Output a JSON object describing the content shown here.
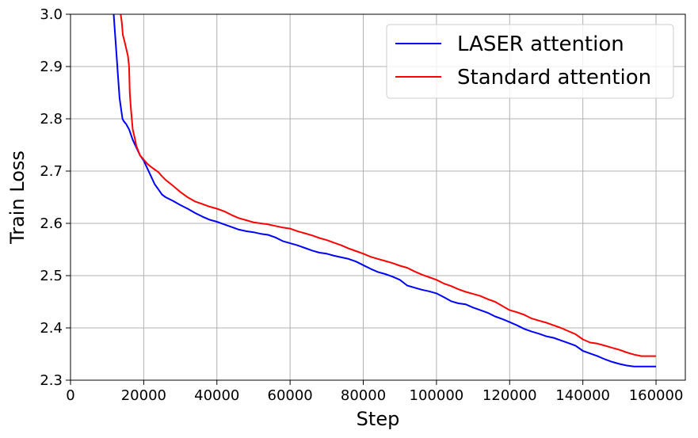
{
  "chart_data": {
    "type": "line",
    "title": "",
    "xlabel": "Step",
    "ylabel": "Train Loss",
    "xlim": [
      0,
      168000
    ],
    "ylim": [
      2.3,
      3.0
    ],
    "grid": true,
    "legend_position": "top-right",
    "x_ticks": [
      0,
      20000,
      40000,
      60000,
      80000,
      100000,
      120000,
      140000,
      160000
    ],
    "x_tick_labels": [
      "0",
      "20000",
      "40000",
      "60000",
      "80000",
      "100000",
      "120000",
      "140000",
      "160000"
    ],
    "y_ticks": [
      2.3,
      2.4,
      2.5,
      2.6,
      2.7,
      2.8,
      2.9,
      3.0
    ],
    "y_tick_labels": [
      "2.3",
      "2.4",
      "2.5",
      "2.6",
      "2.7",
      "2.8",
      "2.9",
      "3.0"
    ],
    "series": [
      {
        "name": "LASER attention",
        "color": "#0000ff",
        "x": [
          11800,
          12000,
          12300,
          12600,
          13000,
          13400,
          13800,
          14200,
          14600,
          15200,
          16000,
          17000,
          18000,
          19000,
          20000,
          21000,
          22000,
          23000,
          24000,
          25000,
          26000,
          28000,
          30000,
          32000,
          34000,
          36000,
          38000,
          40000,
          42000,
          44000,
          46000,
          48000,
          50000,
          52000,
          54000,
          56000,
          58000,
          60000,
          62000,
          64000,
          66000,
          68000,
          70000,
          72000,
          74000,
          76000,
          78000,
          80000,
          82000,
          84000,
          86000,
          88000,
          90000,
          92000,
          94000,
          96000,
          98000,
          100000,
          102000,
          104000,
          106000,
          108000,
          110000,
          112000,
          114000,
          116000,
          118000,
          120000,
          122000,
          124000,
          126000,
          128000,
          130000,
          132000,
          134000,
          136000,
          138000,
          140000,
          142000,
          144000,
          146000,
          148000,
          150000,
          152000,
          154000,
          156000,
          158000,
          160000
        ],
        "y": [
          3.0,
          2.98,
          2.95,
          2.92,
          2.88,
          2.84,
          2.82,
          2.8,
          2.795,
          2.79,
          2.78,
          2.76,
          2.745,
          2.73,
          2.72,
          2.705,
          2.69,
          2.675,
          2.665,
          2.655,
          2.65,
          2.643,
          2.635,
          2.628,
          2.62,
          2.613,
          2.607,
          2.603,
          2.598,
          2.593,
          2.588,
          2.585,
          2.583,
          2.58,
          2.578,
          2.573,
          2.566,
          2.562,
          2.558,
          2.553,
          2.548,
          2.544,
          2.542,
          2.538,
          2.535,
          2.532,
          2.527,
          2.52,
          2.513,
          2.507,
          2.503,
          2.498,
          2.492,
          2.481,
          2.477,
          2.473,
          2.47,
          2.466,
          2.459,
          2.451,
          2.447,
          2.445,
          2.439,
          2.434,
          2.429,
          2.422,
          2.417,
          2.411,
          2.405,
          2.398,
          2.393,
          2.389,
          2.384,
          2.381,
          2.376,
          2.371,
          2.366,
          2.356,
          2.351,
          2.346,
          2.34,
          2.335,
          2.331,
          2.328,
          2.326,
          2.326,
          2.326,
          2.326
        ]
      },
      {
        "name": "Standard attention",
        "color": "#ff0000",
        "x": [
          13700,
          14000,
          14300,
          14700,
          15200,
          15700,
          16000,
          16200,
          16500,
          17000,
          17500,
          18000,
          19000,
          20000,
          21000,
          22000,
          23000,
          24000,
          25000,
          26000,
          28000,
          30000,
          32000,
          34000,
          36000,
          38000,
          40000,
          42000,
          44000,
          46000,
          48000,
          50000,
          52000,
          54000,
          56000,
          58000,
          60000,
          62000,
          64000,
          66000,
          68000,
          70000,
          72000,
          74000,
          76000,
          78000,
          80000,
          82000,
          84000,
          86000,
          88000,
          90000,
          92000,
          94000,
          96000,
          98000,
          100000,
          102000,
          104000,
          106000,
          108000,
          110000,
          112000,
          114000,
          116000,
          118000,
          120000,
          122000,
          124000,
          126000,
          128000,
          130000,
          132000,
          134000,
          136000,
          138000,
          140000,
          142000,
          144000,
          146000,
          148000,
          150000,
          152000,
          154000,
          156000,
          158000,
          160000
        ],
        "y": [
          3.0,
          2.985,
          2.96,
          2.95,
          2.935,
          2.92,
          2.9,
          2.85,
          2.82,
          2.78,
          2.765,
          2.748,
          2.73,
          2.722,
          2.714,
          2.708,
          2.703,
          2.698,
          2.69,
          2.683,
          2.672,
          2.66,
          2.65,
          2.642,
          2.637,
          2.632,
          2.628,
          2.623,
          2.616,
          2.61,
          2.606,
          2.602,
          2.6,
          2.598,
          2.595,
          2.592,
          2.59,
          2.585,
          2.581,
          2.577,
          2.572,
          2.568,
          2.563,
          2.558,
          2.552,
          2.547,
          2.542,
          2.536,
          2.532,
          2.528,
          2.524,
          2.519,
          2.515,
          2.508,
          2.502,
          2.497,
          2.492,
          2.485,
          2.48,
          2.474,
          2.469,
          2.465,
          2.461,
          2.455,
          2.45,
          2.442,
          2.434,
          2.43,
          2.425,
          2.418,
          2.414,
          2.41,
          2.405,
          2.4,
          2.394,
          2.388,
          2.378,
          2.372,
          2.37,
          2.366,
          2.362,
          2.358,
          2.353,
          2.349,
          2.346,
          2.346,
          2.346
        ]
      }
    ]
  }
}
